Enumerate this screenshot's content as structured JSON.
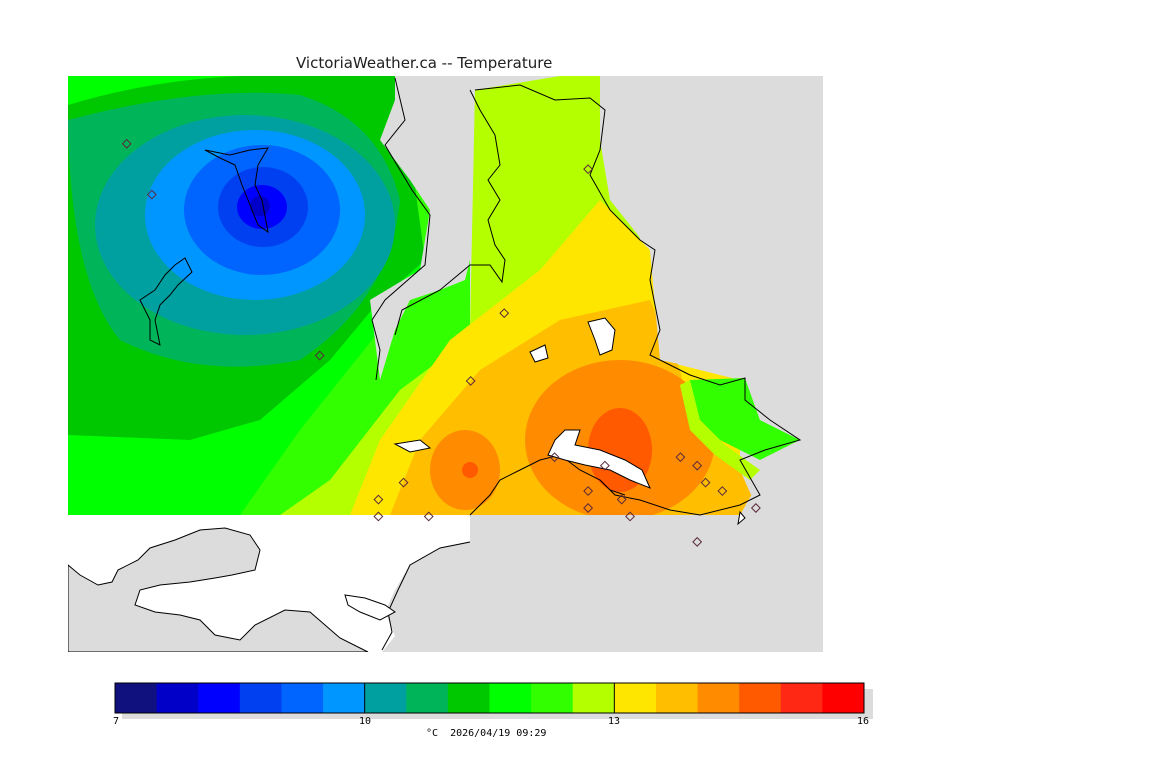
{
  "title": "VictoriaWeather.ca -- Temperature",
  "caption": "°C  2026/04/19 09:29",
  "legend": {
    "min": 7,
    "max": 16,
    "tick_labels": [
      "7",
      "10",
      "13",
      "16"
    ],
    "colors": [
      "#10107e",
      "#0000c8",
      "#0000ff",
      "#0040f0",
      "#0064ff",
      "#0096ff",
      "#00a0a0",
      "#00b45a",
      "#00c800",
      "#00ff00",
      "#32ff00",
      "#b4ff00",
      "#ffe600",
      "#ffbe00",
      "#ff8c00",
      "#ff5a00",
      "#ff2814",
      "#ff0000"
    ]
  },
  "colors": {
    "land_outside": "#dcdcdc",
    "water": "#ffffff",
    "coast": "#000000"
  },
  "stations": [
    {
      "lon": -123.93,
      "lat": 48.9
    },
    {
      "lon": -123.9,
      "lat": 48.84
    },
    {
      "lon": -123.7,
      "lat": 48.65
    },
    {
      "lon": -123.38,
      "lat": 48.87
    },
    {
      "lon": -123.48,
      "lat": 48.7
    },
    {
      "lon": -123.52,
      "lat": 48.62
    },
    {
      "lon": -123.6,
      "lat": 48.5
    },
    {
      "lon": -123.63,
      "lat": 48.48
    },
    {
      "lon": -123.63,
      "lat": 48.46
    },
    {
      "lon": -123.57,
      "lat": 48.46
    },
    {
      "lon": -123.42,
      "lat": 48.53
    },
    {
      "lon": -123.36,
      "lat": 48.52
    },
    {
      "lon": -123.38,
      "lat": 48.49
    },
    {
      "lon": -123.38,
      "lat": 48.47
    },
    {
      "lon": -123.34,
      "lat": 48.48
    },
    {
      "lon": -123.33,
      "lat": 48.46
    },
    {
      "lon": -123.27,
      "lat": 48.53
    },
    {
      "lon": -123.25,
      "lat": 48.52
    },
    {
      "lon": -123.24,
      "lat": 48.5
    },
    {
      "lon": -123.22,
      "lat": 48.49
    },
    {
      "lon": -123.25,
      "lat": 48.43
    },
    {
      "lon": -123.18,
      "lat": 48.47
    }
  ]
}
